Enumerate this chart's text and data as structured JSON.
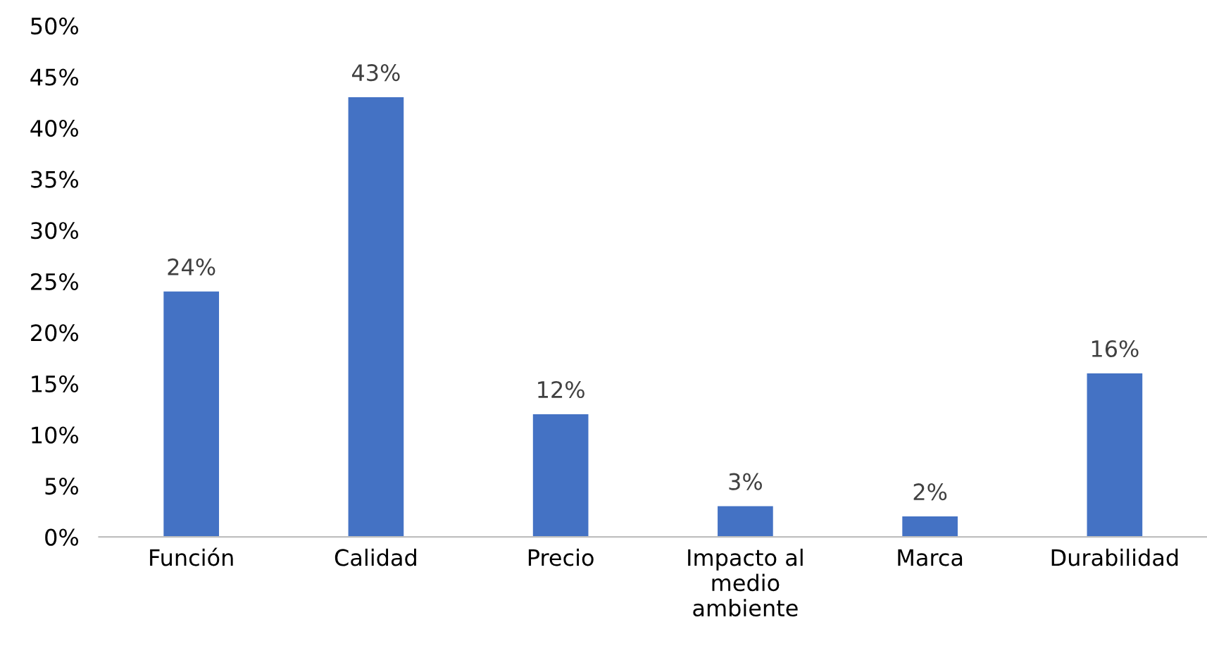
{
  "chart_data": {
    "type": "bar",
    "categories": [
      "Función",
      "Calidad",
      "Precio",
      "Impacto al\nmedio\nambiente",
      "Marca",
      "Durabilidad"
    ],
    "values": [
      24,
      43,
      12,
      3,
      2,
      16
    ],
    "value_labels": [
      "24%",
      "43%",
      "12%",
      "3%",
      "2%",
      "16%"
    ],
    "color": "#4472c4",
    "ylim": [
      0,
      50
    ],
    "yticks": [
      {
        "value": 0,
        "label": "0%"
      },
      {
        "value": 5,
        "label": "5%"
      },
      {
        "value": 10,
        "label": "10%"
      },
      {
        "value": 15,
        "label": "15%"
      },
      {
        "value": 20,
        "label": "20%"
      },
      {
        "value": 25,
        "label": "25%"
      },
      {
        "value": 30,
        "label": "30%"
      },
      {
        "value": 35,
        "label": "35%"
      },
      {
        "value": 40,
        "label": "40%"
      },
      {
        "value": 45,
        "label": "45%"
      },
      {
        "value": 50,
        "label": "50%"
      }
    ],
    "grid": false
  }
}
